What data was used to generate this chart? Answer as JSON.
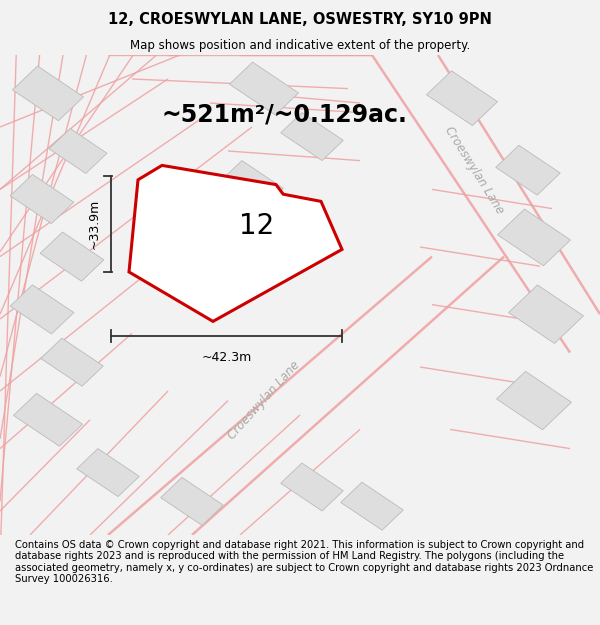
{
  "title_line1": "12, CROESWYLAN LANE, OSWESTRY, SY10 9PN",
  "title_line2": "Map shows position and indicative extent of the property.",
  "area_text": "~521m²/~0.129ac.",
  "label_number": "12",
  "dim_height": "~33.9m",
  "dim_width": "~42.3m",
  "road_label_diagonal": "Croeswylan Lane",
  "road_label_right": "Croeswylan Lane",
  "footer_text": "Contains OS data © Crown copyright and database right 2021. This information is subject to Crown copyright and database rights 2023 and is reproduced with the permission of HM Land Registry. The polygons (including the associated geometry, namely x, y co-ordinates) are subject to Crown copyright and database rights 2023 Ordnance Survey 100026316.",
  "bg_color": "#f2f2f2",
  "map_bg_color": "#ffffff",
  "plot_fill": "#ffffff",
  "plot_edge_color": "#cc0000",
  "road_line_color": "#f0a0a0",
  "building_color": "#dedede",
  "dim_line_color": "#333333",
  "title_fontsize": 10.5,
  "subtitle_fontsize": 8.5,
  "area_fontsize": 17,
  "label_fontsize": 20,
  "footer_fontsize": 7.2,
  "dim_fontsize": 9,
  "road_label_fontsize": 8.5
}
